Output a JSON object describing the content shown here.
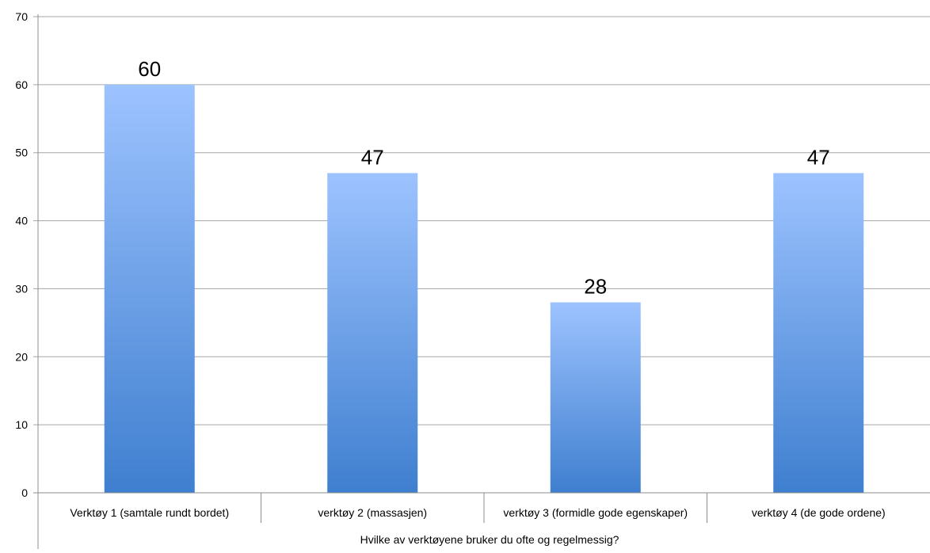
{
  "chart_data": {
    "type": "bar",
    "categories": [
      "Verktøy 1 (samtale rundt bordet)",
      "verktøy 2 (massasjen)",
      "verktøy 3 (formidle gode egenskaper)",
      "verktøy 4 (de gode ordene)"
    ],
    "values": [
      60,
      47,
      28,
      47
    ],
    "data_labels": [
      "60",
      "47",
      "28",
      "47"
    ],
    "title": "",
    "xlabel": "Hvilke av verktøyene bruker du ofte og regelmessig?",
    "ylabel": "",
    "ylim": [
      0,
      70
    ],
    "yticks": [
      "0",
      "10",
      "20",
      "30",
      "40",
      "50",
      "60",
      "70"
    ],
    "grid": true,
    "legend": "none",
    "colors": {
      "bar_top": "#9dc3ff",
      "bar_bottom": "#3f7fcf",
      "grid": "#a6a6a6",
      "axis": "#8c8c8c"
    }
  }
}
